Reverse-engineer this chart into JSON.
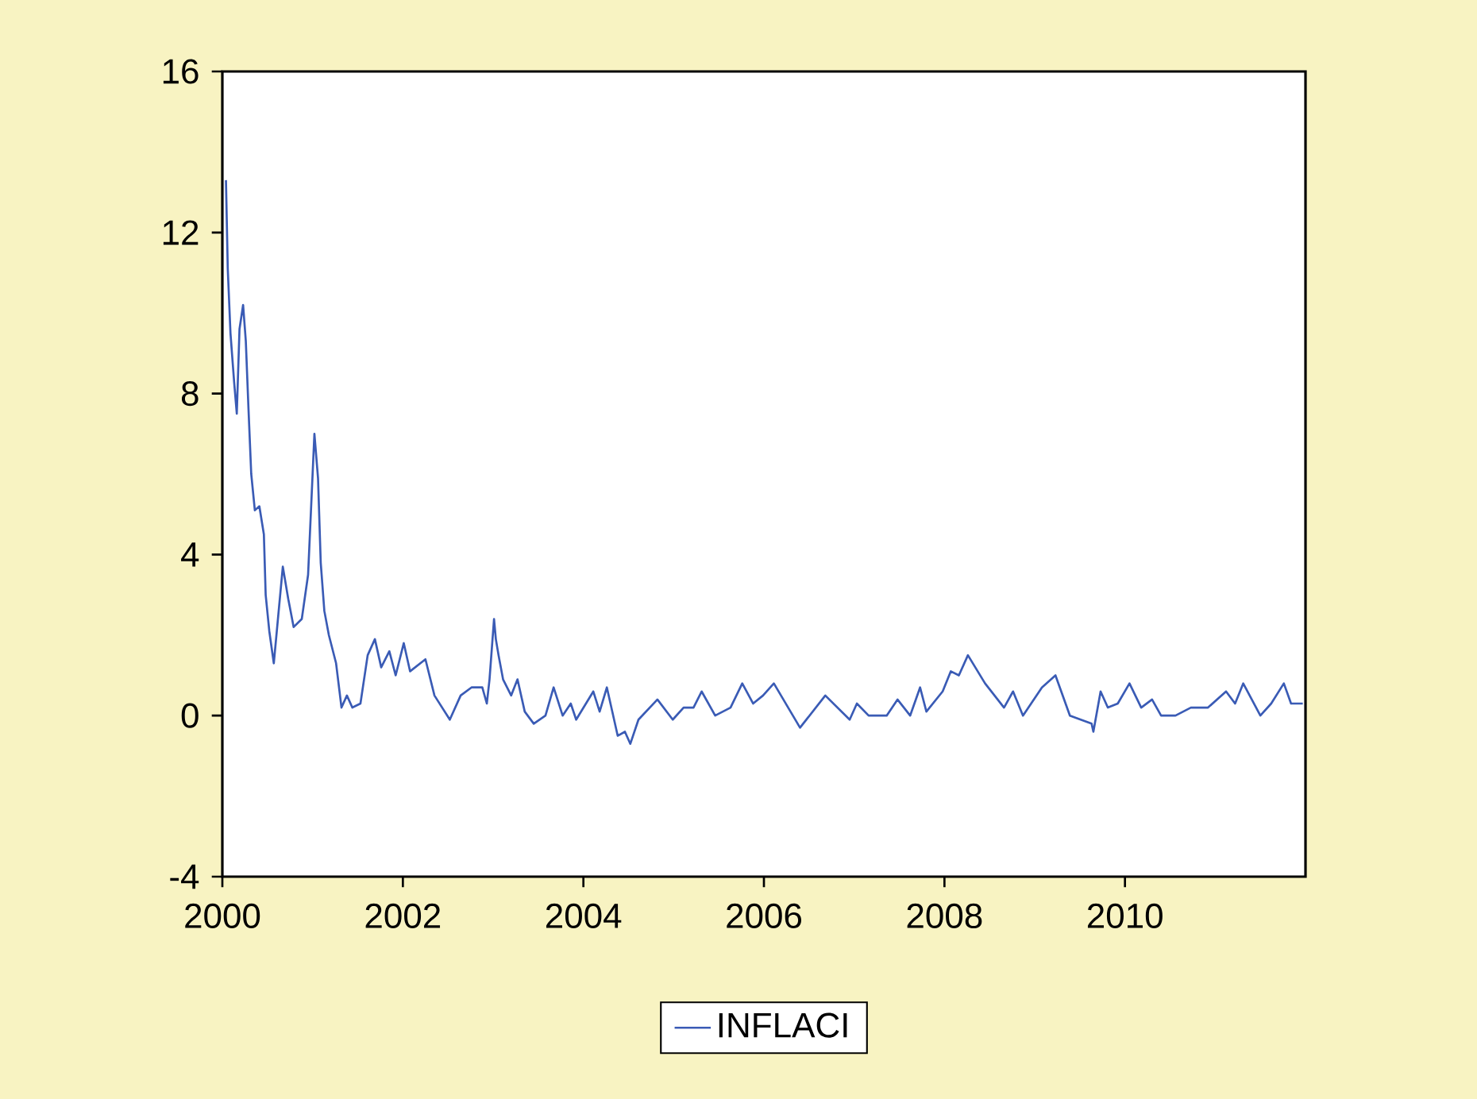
{
  "chart_data": {
    "type": "line",
    "x": [
      2000.04,
      2000.06,
      2000.09,
      2000.13,
      2000.16,
      2000.19,
      2000.23,
      2000.26,
      2000.29,
      2000.32,
      2000.36,
      2000.41,
      2000.46,
      2000.48,
      2000.52,
      2000.57,
      2000.62,
      2000.67,
      2000.73,
      2000.79,
      2000.88,
      2000.95,
      2001.02,
      2001.06,
      2001.09,
      2001.13,
      2001.18,
      2001.26,
      2001.32,
      2001.38,
      2001.44,
      2001.53,
      2001.61,
      2001.69,
      2001.76,
      2001.85,
      2001.92,
      2002.01,
      2002.08,
      2002.25,
      2002.35,
      2002.52,
      2002.64,
      2002.76,
      2002.88,
      2002.93,
      2002.96,
      2003.01,
      2003.03,
      2003.06,
      2003.11,
      2003.2,
      2003.27,
      2003.35,
      2003.45,
      2003.58,
      2003.67,
      2003.77,
      2003.86,
      2003.92,
      2004.11,
      2004.18,
      2004.26,
      2004.38,
      2004.46,
      2004.52,
      2004.61,
      2004.82,
      2004.99,
      2005.11,
      2005.22,
      2005.31,
      2005.46,
      2005.63,
      2005.76,
      2005.88,
      2005.99,
      2006.11,
      2006.4,
      2006.68,
      2006.95,
      2007.03,
      2007.16,
      2007.36,
      2007.48,
      2007.62,
      2007.73,
      2007.8,
      2007.98,
      2008.07,
      2008.16,
      2008.26,
      2008.45,
      2008.66,
      2008.76,
      2008.87,
      2009.08,
      2009.23,
      2009.39,
      2009.63,
      2009.65,
      2009.73,
      2009.81,
      2009.92,
      2010.05,
      2010.18,
      2010.3,
      2010.4,
      2010.56,
      2010.73,
      2010.92,
      2011.12,
      2011.22,
      2011.31,
      2011.5,
      2011.62,
      2011.76,
      2011.84,
      2011.97
    ],
    "series": [
      {
        "name": "INFLACI",
        "color": "#3a5bb5",
        "values": [
          13.3,
          11.1,
          9.5,
          8.3,
          7.5,
          9.6,
          10.2,
          9.3,
          7.6,
          6.0,
          5.1,
          5.2,
          4.5,
          3.0,
          2.1,
          1.3,
          2.5,
          3.7,
          2.9,
          2.2,
          2.4,
          3.5,
          7.0,
          5.9,
          3.8,
          2.6,
          2.0,
          1.3,
          0.2,
          0.5,
          0.2,
          0.3,
          1.5,
          1.9,
          1.2,
          1.6,
          1.0,
          1.8,
          1.1,
          1.4,
          0.5,
          -0.1,
          0.5,
          0.7,
          0.7,
          0.3,
          0.9,
          2.4,
          1.9,
          1.5,
          0.9,
          0.5,
          0.9,
          0.1,
          -0.2,
          0.0,
          0.7,
          0.0,
          0.3,
          -0.1,
          0.6,
          0.1,
          0.7,
          -0.5,
          -0.4,
          -0.7,
          -0.1,
          0.4,
          -0.1,
          0.2,
          0.2,
          0.6,
          0.0,
          0.2,
          0.8,
          0.3,
          0.5,
          0.8,
          -0.3,
          0.5,
          -0.1,
          0.3,
          0.0,
          0.0,
          0.4,
          0.0,
          0.7,
          0.1,
          0.6,
          1.1,
          1.0,
          1.5,
          0.8,
          0.2,
          0.6,
          0.0,
          0.7,
          1.0,
          0.0,
          -0.2,
          -0.4,
          0.6,
          0.2,
          0.3,
          0.8,
          0.2,
          0.4,
          0.0,
          0.0,
          0.2,
          0.2,
          0.6,
          0.3,
          0.8,
          0.0,
          0.3,
          0.8,
          0.3,
          0.3
        ]
      }
    ],
    "xlim": [
      2000,
      2012
    ],
    "xticks": [
      2000,
      2002,
      2004,
      2006,
      2008,
      2010
    ],
    "ylim": [
      -4,
      16
    ],
    "yticks": [
      -4,
      0,
      4,
      8,
      12,
      16
    ],
    "legend": "bottom"
  }
}
